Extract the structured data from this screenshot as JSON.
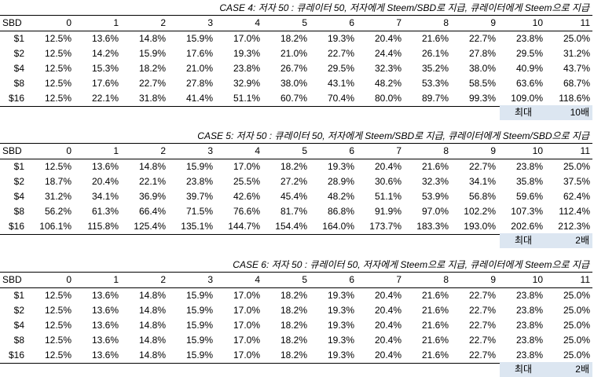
{
  "cases": [
    {
      "title": "CASE 4: 저자 50 : 큐레이터 50, 저자에게 Steem/SBD로 지급, 큐레이터에게 Steem으로 지급",
      "header": [
        "SBD",
        "0",
        "1",
        "2",
        "3",
        "4",
        "5",
        "6",
        "7",
        "8",
        "9",
        "10",
        "11"
      ],
      "rows": [
        [
          "$1",
          "12.5%",
          "13.6%",
          "14.8%",
          "15.9%",
          "17.0%",
          "18.2%",
          "19.3%",
          "20.4%",
          "21.6%",
          "22.7%",
          "23.8%",
          "25.0%"
        ],
        [
          "$2",
          "12.5%",
          "14.2%",
          "15.9%",
          "17.6%",
          "19.3%",
          "21.0%",
          "22.7%",
          "24.4%",
          "26.1%",
          "27.8%",
          "29.5%",
          "31.2%"
        ],
        [
          "$4",
          "12.5%",
          "15.3%",
          "18.2%",
          "21.0%",
          "23.8%",
          "26.7%",
          "29.5%",
          "32.3%",
          "35.2%",
          "38.0%",
          "40.9%",
          "43.7%"
        ],
        [
          "$8",
          "12.5%",
          "17.6%",
          "22.7%",
          "27.8%",
          "32.9%",
          "38.0%",
          "43.1%",
          "48.2%",
          "53.3%",
          "58.5%",
          "63.6%",
          "68.7%"
        ],
        [
          "$16",
          "12.5%",
          "22.1%",
          "31.8%",
          "41.4%",
          "51.1%",
          "60.7%",
          "70.4%",
          "80.0%",
          "89.7%",
          "99.3%",
          "109.0%",
          "118.6%"
        ]
      ],
      "max_label": "최대",
      "max_value": "10배"
    },
    {
      "title": "CASE 5: 저자 50 : 큐레이터 50, 저자에게 Steem/SBD로 지급, 큐레이터에게 Steem/SBD으로 지급",
      "header": [
        "SBD",
        "0",
        "1",
        "2",
        "3",
        "4",
        "5",
        "6",
        "7",
        "8",
        "9",
        "10",
        "11"
      ],
      "rows": [
        [
          "$1",
          "12.5%",
          "13.6%",
          "14.8%",
          "15.9%",
          "17.0%",
          "18.2%",
          "19.3%",
          "20.4%",
          "21.6%",
          "22.7%",
          "23.8%",
          "25.0%"
        ],
        [
          "$2",
          "18.7%",
          "20.4%",
          "22.1%",
          "23.8%",
          "25.5%",
          "27.2%",
          "28.9%",
          "30.6%",
          "32.3%",
          "34.1%",
          "35.8%",
          "37.5%"
        ],
        [
          "$4",
          "31.2%",
          "34.1%",
          "36.9%",
          "39.7%",
          "42.6%",
          "45.4%",
          "48.2%",
          "51.1%",
          "53.9%",
          "56.8%",
          "59.6%",
          "62.4%"
        ],
        [
          "$8",
          "56.2%",
          "61.3%",
          "66.4%",
          "71.5%",
          "76.6%",
          "81.7%",
          "86.8%",
          "91.9%",
          "97.0%",
          "102.2%",
          "107.3%",
          "112.4%"
        ],
        [
          "$16",
          "106.1%",
          "115.8%",
          "125.4%",
          "135.1%",
          "144.7%",
          "154.4%",
          "164.0%",
          "173.7%",
          "183.3%",
          "193.0%",
          "202.6%",
          "212.3%"
        ]
      ],
      "max_label": "최대",
      "max_value": "2배"
    },
    {
      "title": "CASE 6: 저자 50 : 큐레이터 50, 저자에게 Steem으로 지급, 큐레이터에게 Steem으로 지급",
      "header": [
        "SBD",
        "0",
        "1",
        "2",
        "3",
        "4",
        "5",
        "6",
        "7",
        "8",
        "9",
        "10",
        "11"
      ],
      "rows": [
        [
          "$1",
          "12.5%",
          "13.6%",
          "14.8%",
          "15.9%",
          "17.0%",
          "18.2%",
          "19.3%",
          "20.4%",
          "21.6%",
          "22.7%",
          "23.8%",
          "25.0%"
        ],
        [
          "$2",
          "12.5%",
          "13.6%",
          "14.8%",
          "15.9%",
          "17.0%",
          "18.2%",
          "19.3%",
          "20.4%",
          "21.6%",
          "22.7%",
          "23.8%",
          "25.0%"
        ],
        [
          "$4",
          "12.5%",
          "13.6%",
          "14.8%",
          "15.9%",
          "17.0%",
          "18.2%",
          "19.3%",
          "20.4%",
          "21.6%",
          "22.7%",
          "23.8%",
          "25.0%"
        ],
        [
          "$8",
          "12.5%",
          "13.6%",
          "14.8%",
          "15.9%",
          "17.0%",
          "18.2%",
          "19.3%",
          "20.4%",
          "21.6%",
          "22.7%",
          "23.8%",
          "25.0%"
        ],
        [
          "$16",
          "12.5%",
          "13.6%",
          "14.8%",
          "15.9%",
          "17.0%",
          "18.2%",
          "19.3%",
          "20.4%",
          "21.6%",
          "22.7%",
          "23.8%",
          "25.0%"
        ]
      ],
      "max_label": "최대",
      "max_value": "2배"
    }
  ],
  "colors": {
    "max_box_bg": "#dce6f1",
    "text": "#000000"
  }
}
